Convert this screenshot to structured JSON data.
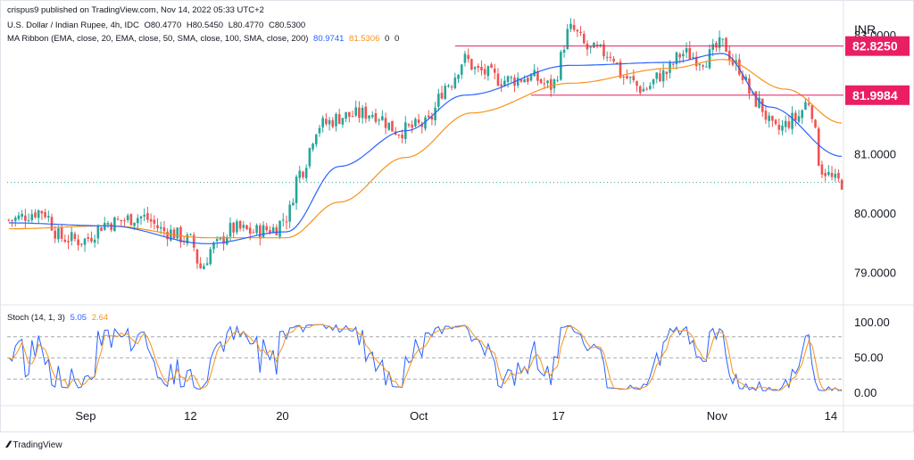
{
  "header": {
    "publish": "crispus9 published on TradingView.com, Nov 14, 2022 05:33 UTC+2",
    "symbol": "U.S. Dollar / Indian Rupee, 4h, IDC",
    "ohlc": {
      "o": "O80.4770",
      "h": "H80.5450",
      "l": "L80.4770",
      "c": "C80.5300"
    },
    "ma_label": "MA Ribbon (EMA, close, 20, EMA, close, 50, SMA, close, 100, SMA, close, 200)",
    "ma_values": [
      "80.9741",
      "81.5306",
      "0",
      "0"
    ],
    "currency": "INR"
  },
  "stoch": {
    "label": "Stoch (14, 1, 3)",
    "k": "5.05",
    "d": "2.64"
  },
  "footer": {
    "brand": "TradingView"
  },
  "colors": {
    "up": "#26a69a",
    "down": "#ef5350",
    "ema20": "#2962ff",
    "ema50": "#f7931a",
    "level": "#e91e63",
    "grid": "#e0e3eb"
  },
  "chart_data": [
    {
      "type": "candlestick",
      "x_ticks": [
        "Sep",
        "12",
        "20",
        "Oct",
        "17",
        "Nov",
        "14"
      ],
      "y_ticks": [
        "79.0000",
        "80.0000",
        "81.0000",
        "83.0000"
      ],
      "ylim": [
        78.5,
        83.3
      ],
      "levels": [
        {
          "label": "82.8250",
          "value": 82.825
        },
        {
          "label": "81.9984",
          "value": 81.9984
        }
      ],
      "last_price": 80.53,
      "close_anchors": [
        [
          0,
          79.9
        ],
        [
          10,
          80.05
        ],
        [
          16,
          79.6
        ],
        [
          22,
          79.55
        ],
        [
          30,
          79.85
        ],
        [
          40,
          79.95
        ],
        [
          48,
          79.7
        ],
        [
          55,
          79.55
        ],
        [
          58,
          79.1
        ],
        [
          62,
          79.45
        ],
        [
          68,
          79.75
        ],
        [
          74,
          79.7
        ],
        [
          80,
          79.75
        ],
        [
          84,
          79.95
        ],
        [
          88,
          80.7
        ],
        [
          94,
          81.5
        ],
        [
          102,
          81.65
        ],
        [
          110,
          81.7
        ],
        [
          118,
          81.4
        ],
        [
          126,
          81.5
        ],
        [
          133,
          82.2
        ],
        [
          138,
          82.6
        ],
        [
          142,
          82.4
        ],
        [
          150,
          82.25
        ],
        [
          158,
          82.3
        ],
        [
          164,
          82.15
        ],
        [
          170,
          83.1
        ],
        [
          176,
          82.75
        ],
        [
          182,
          82.7
        ],
        [
          186,
          82.3
        ],
        [
          192,
          82.1
        ],
        [
          198,
          82.35
        ],
        [
          204,
          82.7
        ],
        [
          210,
          82.6
        ],
        [
          216,
          82.85
        ],
        [
          220,
          82.5
        ],
        [
          226,
          81.9
        ],
        [
          232,
          81.4
        ],
        [
          238,
          81.6
        ],
        [
          242,
          81.9
        ],
        [
          246,
          80.75
        ],
        [
          250,
          80.55
        ],
        [
          252,
          80.53
        ]
      ],
      "ema20_anchors": [
        [
          0,
          79.85
        ],
        [
          30,
          79.8
        ],
        [
          60,
          79.5
        ],
        [
          84,
          79.7
        ],
        [
          100,
          80.8
        ],
        [
          120,
          81.4
        ],
        [
          138,
          82.0
        ],
        [
          170,
          82.5
        ],
        [
          200,
          82.55
        ],
        [
          216,
          82.7
        ],
        [
          230,
          81.8
        ],
        [
          252,
          80.97
        ]
      ],
      "ema50_anchors": [
        [
          0,
          79.75
        ],
        [
          30,
          79.8
        ],
        [
          60,
          79.6
        ],
        [
          84,
          79.6
        ],
        [
          100,
          80.2
        ],
        [
          120,
          80.95
        ],
        [
          140,
          81.7
        ],
        [
          170,
          82.2
        ],
        [
          200,
          82.45
        ],
        [
          216,
          82.6
        ],
        [
          235,
          82.1
        ],
        [
          252,
          81.53
        ]
      ]
    },
    {
      "type": "line",
      "name": "Stoch",
      "y_ticks": [
        "100.00",
        "50.00",
        "0.00"
      ],
      "ylim": [
        0,
        100
      ],
      "bands": [
        80,
        50,
        20
      ],
      "k_last": 5.05,
      "d_last": 2.64
    }
  ]
}
